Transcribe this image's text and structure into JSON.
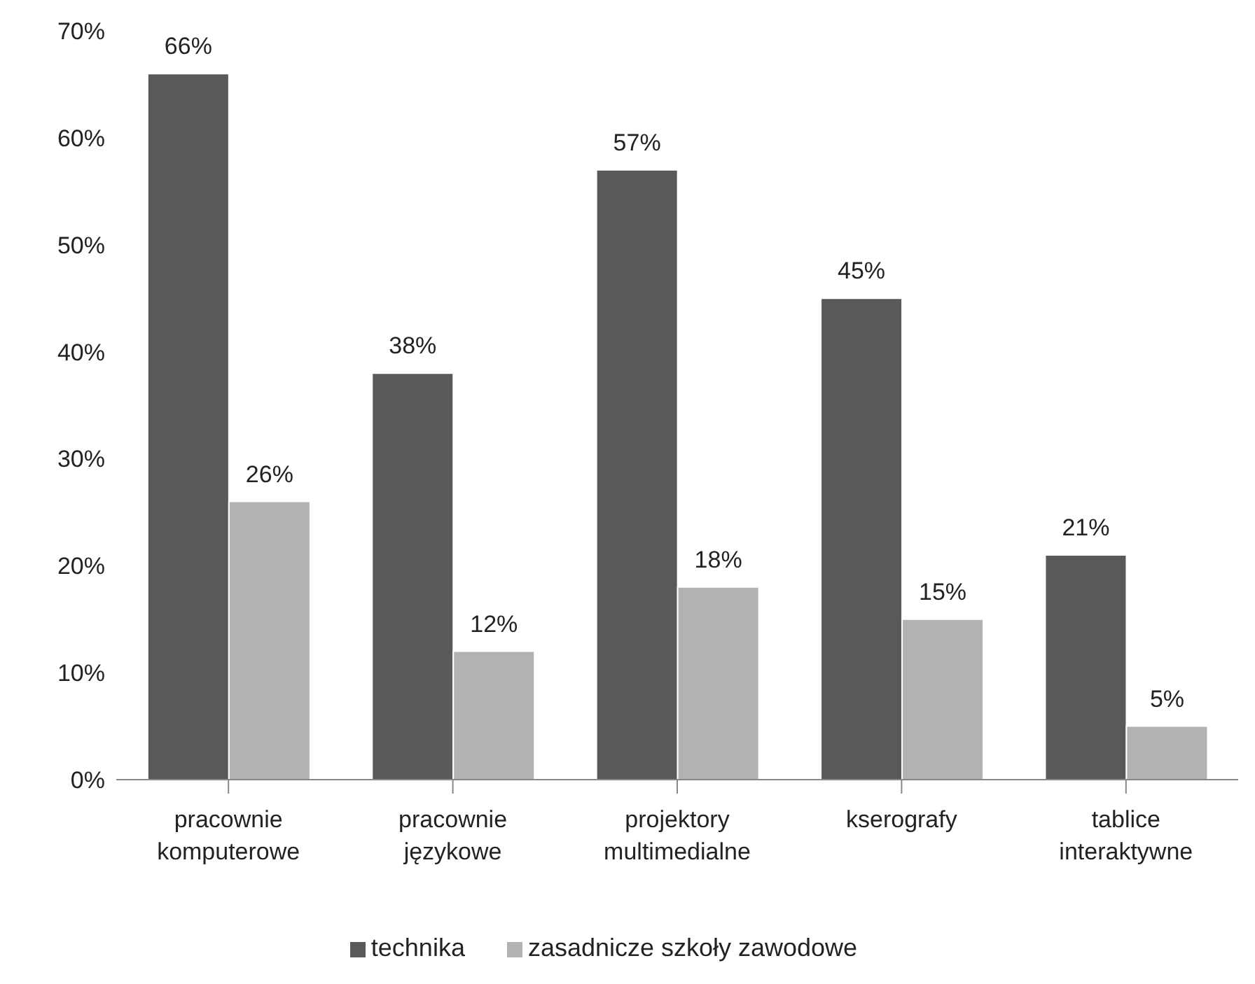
{
  "chart_data": {
    "type": "bar",
    "categories": [
      "pracownie komputerowe",
      "pracownie językowe",
      "projektory multimedialne",
      "kserografy",
      "tablice interaktywne"
    ],
    "series": [
      {
        "name": "technika",
        "color": "#595959",
        "values": [
          66,
          38,
          57,
          45,
          21
        ],
        "value_labels": [
          "66%",
          "38%",
          "57%",
          "45%",
          "21%"
        ]
      },
      {
        "name": "zasadnicze szkoły zawodowe",
        "color": "#b2b2b2",
        "values": [
          26,
          12,
          18,
          15,
          5
        ],
        "value_labels": [
          "26%",
          "12%",
          "18%",
          "15%",
          "5%"
        ]
      }
    ],
    "ylim": [
      0,
      70
    ],
    "yticks": [
      {
        "value": 0,
        "label": "0%"
      },
      {
        "value": 10,
        "label": "10%"
      },
      {
        "value": 20,
        "label": "20%"
      },
      {
        "value": 30,
        "label": "30%"
      },
      {
        "value": 40,
        "label": "40%"
      },
      {
        "value": 50,
        "label": "50%"
      },
      {
        "value": 60,
        "label": "60%"
      },
      {
        "value": 70,
        "label": "70%"
      }
    ],
    "grid": false,
    "legend": "bottom"
  }
}
